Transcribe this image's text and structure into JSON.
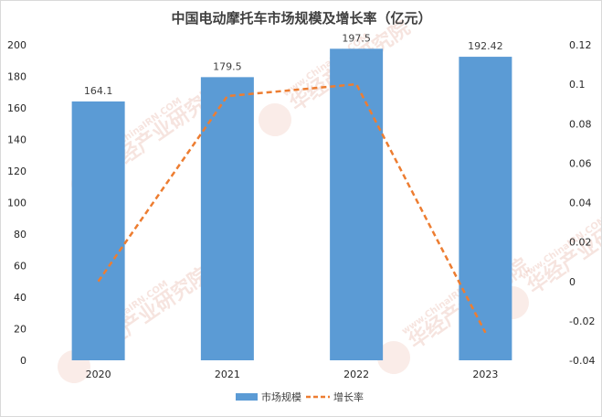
{
  "chart_data": {
    "type": "bar",
    "title": "中国电动摩托车市场规模及增长率（亿元）",
    "categories": [
      "2020",
      "2021",
      "2022",
      "2023"
    ],
    "series": [
      {
        "name": "市场规模",
        "type": "bar",
        "axis": "left",
        "color": "#5b9bd5",
        "values": [
          164.1,
          179.5,
          197.5,
          192.42
        ],
        "labels": [
          "164.1",
          "179.5",
          "197.5",
          "192.42"
        ]
      },
      {
        "name": "增长率",
        "type": "line",
        "axis": "right",
        "color": "#ed7d31",
        "line_style": "dashed",
        "values": [
          0.0,
          0.094,
          0.1,
          -0.026
        ]
      }
    ],
    "y_left": {
      "min": 0,
      "max": 200,
      "ticks": [
        "0",
        "20",
        "40",
        "60",
        "80",
        "100",
        "120",
        "140",
        "160",
        "180",
        "200"
      ]
    },
    "y_right": {
      "min": -0.04,
      "max": 0.12,
      "ticks": [
        "-0.04",
        "-0.02",
        "0",
        "0.02",
        "0.04",
        "0.06",
        "0.08",
        "0.1",
        "0.12"
      ]
    },
    "grid": false,
    "legend": "bottom-center"
  },
  "watermark": {
    "text_cn": "华经产业研究院",
    "text_en": "www.ChinaIRN.COM",
    "logo": "CIRN"
  }
}
